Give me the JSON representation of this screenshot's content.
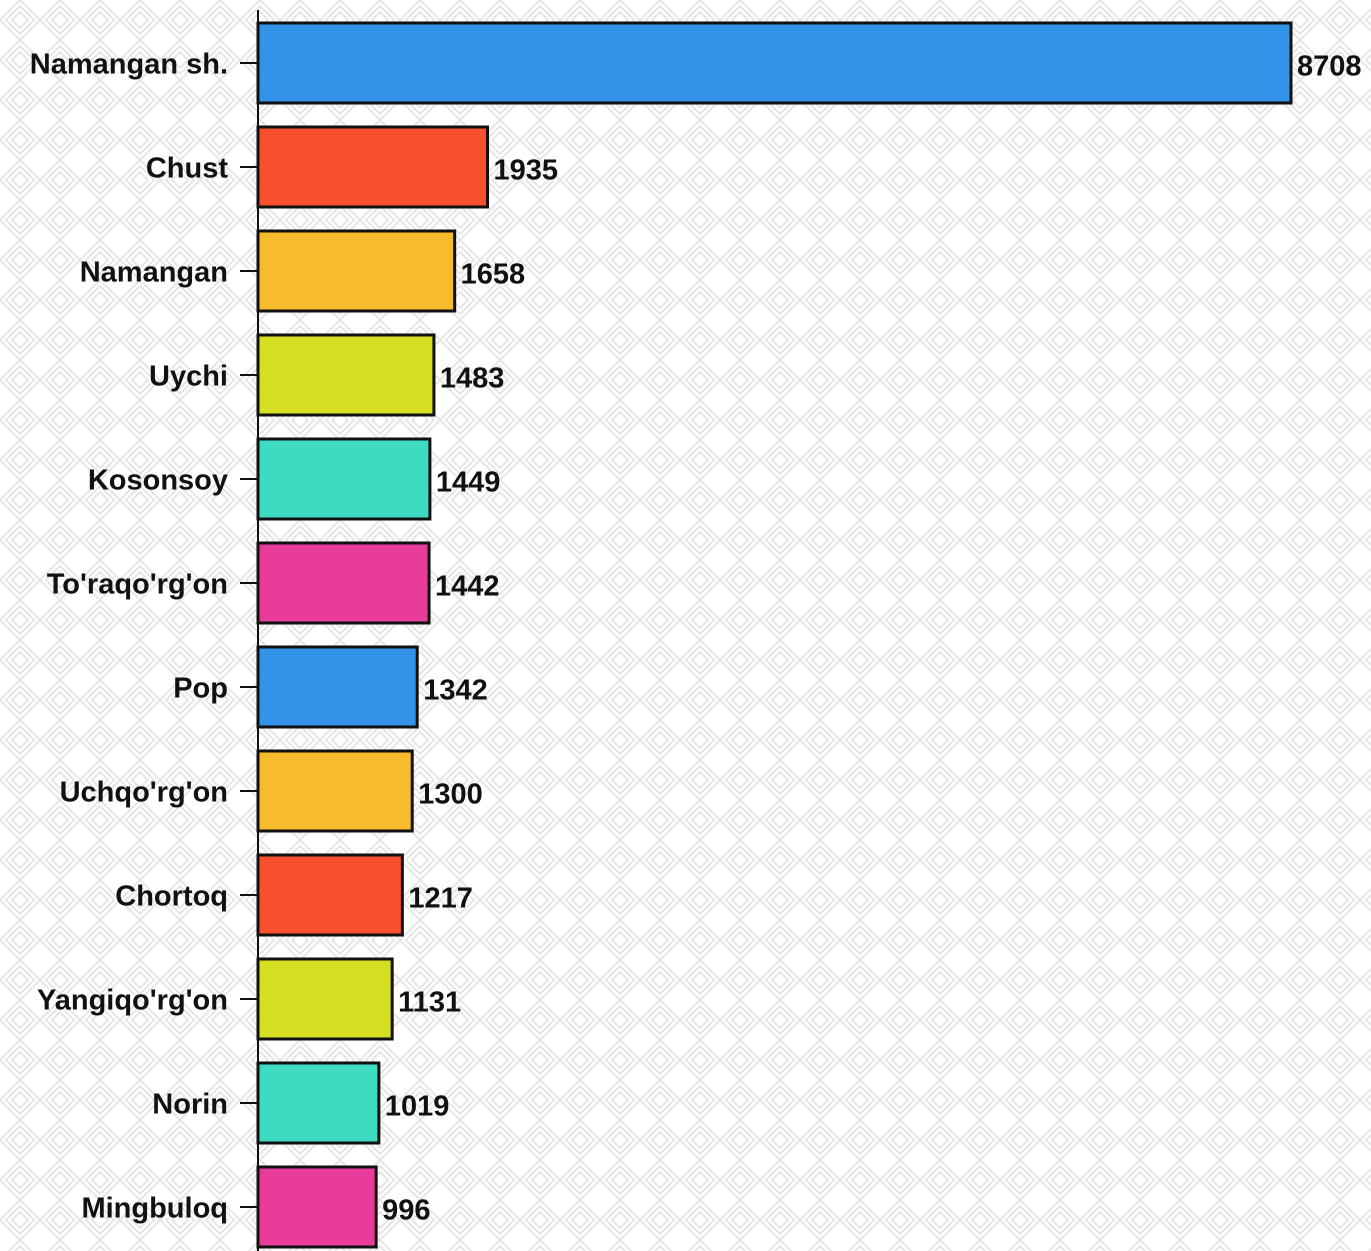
{
  "chart_data": {
    "type": "bar",
    "orientation": "horizontal",
    "categories": [
      "Namangan sh.",
      "Chust",
      "Namangan",
      "Uychi",
      "Kosonsoy",
      "To'raqo'rg'on",
      "Pop",
      "Uchqo'rg'on",
      "Chortoq",
      "Yangiqo'rg'on",
      "Norin",
      "Mingbuloq"
    ],
    "values": [
      8708,
      1935,
      1658,
      1483,
      1449,
      1442,
      1342,
      1300,
      1217,
      1131,
      1019,
      996
    ],
    "colors": [
      "#3294e8",
      "#f8502e",
      "#f7bc2e",
      "#d6de22",
      "#3ddcc2",
      "#e73c99",
      "#3294e8",
      "#f7bc2e",
      "#f8502e",
      "#d6de22",
      "#3ddcc2",
      "#e73c99"
    ]
  }
}
